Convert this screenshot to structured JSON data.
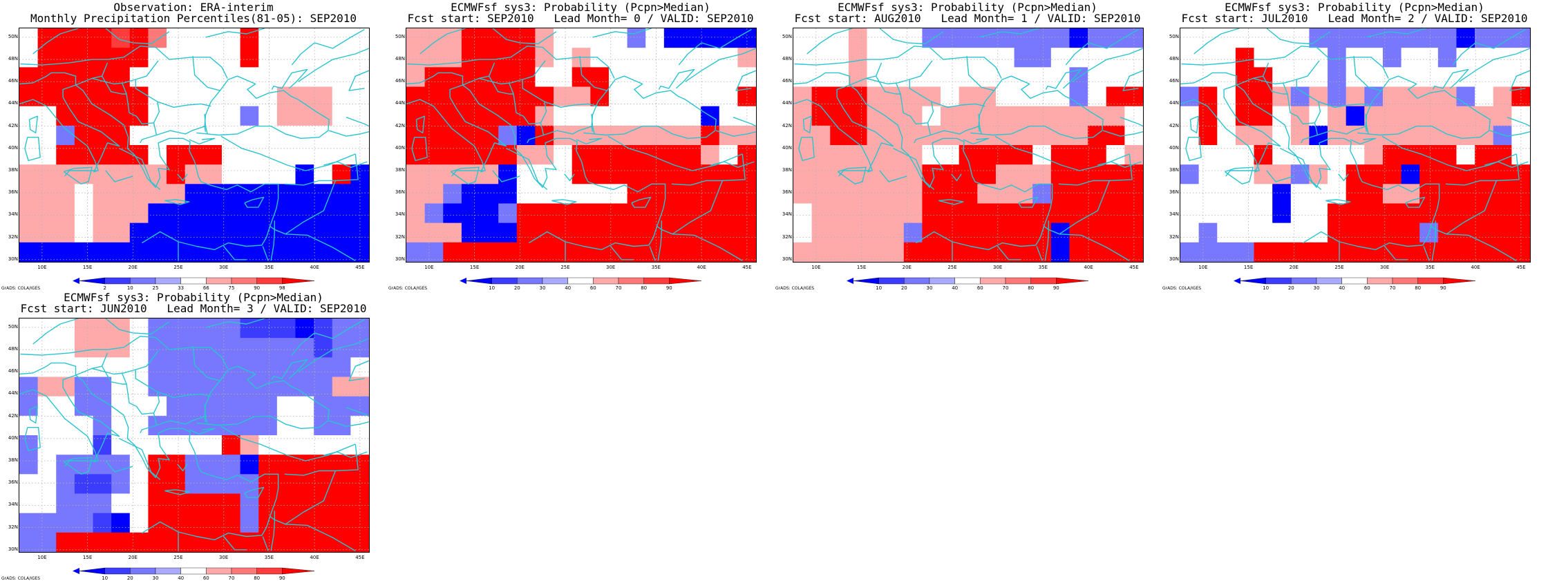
{
  "panels": [
    {
      "title1": "Observation: ERA-interim",
      "title2": "Monthly Precipitation Percentiles(81-05): SEP2010",
      "colorbar": {
        "labels": [
          "2",
          "10",
          "25",
          "33",
          "66",
          "75",
          "90",
          "98"
        ],
        "colors": [
          "#0000ff",
          "#3c3cff",
          "#7878ff",
          "#aaaaff",
          "#ffffff",
          "#ffaaaa",
          "#ff7878",
          "#ff3c3c",
          "#ff0000"
        ]
      },
      "grid": [
        "WRRRRdROWWWWRWWWWWW",
        "WRRRRRRWWWWWRWWWWWW",
        "RRRRRRWWWWWWWWWWWWW",
        "RRRRRRRWWWWWWWPPPWW",
        "WWRRRRRWWWWWLWPPPWW",
        "WWLRRRWWWWWWWWWWWWW",
        "WWRRRRRWRRRWWWWWWWW",
        "PPPPPPPPRPPWWWWBWRB",
        "PPPWPPPPPBBBBBBBBBB",
        "PPPWPPPBBBBBBBBBBBB",
        "PPPWPPBBBBBBBBBBBBB",
        "BBBBBBBBBBBBBBBBBBB"
      ]
    },
    {
      "title1": "ECMWFsf sys3: Probability (Pcpn>Median)",
      "title2": "Fcst start: SEP2010   Lead Month= 0 / VALID: SEP2010",
      "colorbar": {
        "labels": [
          "10",
          "20",
          "30",
          "40",
          "60",
          "70",
          "80",
          "90"
        ],
        "colors": [
          "#0000ff",
          "#3c3cff",
          "#7878ff",
          "#aaaaff",
          "#ffffff",
          "#ffaaaa",
          "#ff7878",
          "#ff3c3c",
          "#ff0000"
        ]
      },
      "grid": [
        "PPPRRRRPWWWWLWBBBBB",
        "PPPRRRRPWPWWWWWWWWP",
        "PRRRRRRWWRRWWWWWWWW",
        "RRRRRRRRPPRWWWWWWWR",
        "RRRRRRRPWWWWWWWWBWW",
        "RRRRRLBRPPPPPPPPRPP",
        "RRRRRRPPWRRRRRRRPWR",
        "PPPPPBWWWRRRRRRRRRR",
        "PPLBBBWWWWWWRRRRRRR",
        "PLBBBLRRRRRRRRRRRRR",
        "PPPBBBRRRRRRRRRRRRR",
        "LLRRRRRRRRRRRRRRRRR"
      ]
    },
    {
      "title1": "ECMWFsf sys3: Probability (Pcpn>Median)",
      "title2": "Fcst start: AUG2010   Lead Month= 1 / VALID: SEP2010",
      "colorbar": {
        "labels": [
          "10",
          "20",
          "30",
          "40",
          "60",
          "70",
          "80",
          "90"
        ],
        "colors": [
          "#0000ff",
          "#3c3cff",
          "#7878ff",
          "#aaaaff",
          "#ffffff",
          "#ffaaaa",
          "#ff7878",
          "#ff3c3c",
          "#ff0000"
        ]
      },
      "grid": [
        "WWWPWWWLLLLLLLLBLLL",
        "WWWPWWWWWWWWLLWWWWW",
        "WWWPWWWWWWWWWWWLWWW",
        "PRRRPPPPWPPWWWWLWRR",
        "PRRRPPPWPPPPPPPPPPW",
        "PPRRPPPPPPPPPPPPRRW",
        "PPPPPPPWWRRRRWRRRWP",
        "PPPPPPPRRRRPPPRRRRR",
        "PPPPPPPRRRPPPLRRRRR",
        "WPPPPPPRRRRRRRRRRRR",
        "WPPPPPLRRRRRRRBRRRR",
        "PPPPPPRRRRRRRRBRRRR"
      ]
    },
    {
      "title1": "ECMWFsf sys3: Probability (Pcpn>Median)",
      "title2": "Fcst start: JUL2010   Lead Month= 2 / VALID: SEP2010",
      "colorbar": {
        "labels": [
          "10",
          "20",
          "30",
          "40",
          "60",
          "70",
          "80",
          "90"
        ],
        "colors": [
          "#0000ff",
          "#3c3cff",
          "#7878ff",
          "#aaaaff",
          "#ffffff",
          "#ffaaaa",
          "#ff7878",
          "#ff3c3c",
          "#ff0000"
        ]
      },
      "grid": [
        "WWWWWWWLLLLLLLLBLLL",
        "WWWRWWWWLWWLWWLWWWW",
        "WWWRRWWWLWWWWWWWWWW",
        "LRWRRPLPLPLPPPPLWPR",
        "WRWRRWPWPBPPPPPPPPW",
        "WRWPPWPBPPPPPPPPPLW",
        "WWWWRWWWWWPRRRRWRRW",
        "LWWWPPLPWRRRBRRRRRR",
        "WWWWWBWWWRRPPRRRRRR",
        "WWWWWBWWRRRRRRRRRRR",
        "WLWWWWWWRRRRRLRRRRR",
        "LLLLRRRRRRRRRRRRRRR"
      ]
    },
    {
      "title1": "ECMWFsf sys3: Probability (Pcpn>Median)",
      "title2": "Fcst start: JUN2010   Lead Month= 3 / VALID: SEP2010",
      "colorbar": {
        "labels": [
          "10",
          "20",
          "30",
          "40",
          "60",
          "70",
          "80",
          "90"
        ],
        "colors": [
          "#0000ff",
          "#3c3cff",
          "#7878ff",
          "#aaaaff",
          "#ffffff",
          "#ffaaaa",
          "#ff7878",
          "#ff3c3c",
          "#ff0000"
        ]
      },
      "grid": [
        "WWWPPPWLLLLLMMMBMLL",
        "WWWPPPWLLLLLLLLLMLL",
        "WWWWWWWLLLLLLLLLLLW",
        "LPPLLWWLLLLLLLLLLPP",
        "LWWLLWWWLLLLLLWWLLL",
        "WWWWLWWLLLLLLLWWLLW",
        "LWWWMWWWWWWRPWWWWWW",
        "LWLLLLWRRLLLBRRRRRR",
        "WWLMMLWRRLLLLRRRRRR",
        "WWLLLWWRRRRRLRRRRRR",
        "LLLLMBWRRRRRLRRRRRR",
        "LLRRRRRRRRRRRRRRRRR"
      ]
    }
  ],
  "map_axes": {
    "lat_labels": [
      "50N",
      "48N",
      "46N",
      "44N",
      "42N",
      "40N",
      "38N",
      "36N",
      "34N",
      "32N",
      "30N"
    ],
    "lon_labels": [
      "10E",
      "15E",
      "20E",
      "25E",
      "30E",
      "35E",
      "40E",
      "45E"
    ]
  },
  "fill_key": {
    "B": "#0000ff",
    "M": "#3c3cff",
    "L": "#7878ff",
    "A": "#aaaaff",
    "W": "#ffffff",
    "P": "#ffaaaa",
    "O": "#ff7878",
    "d": "#ff3c3c",
    "R": "#ff0000"
  },
  "credit": "GrADS: COLA/IGES",
  "coastline_color": "#29c4cf",
  "gridline_color": "#b0b0b0"
}
